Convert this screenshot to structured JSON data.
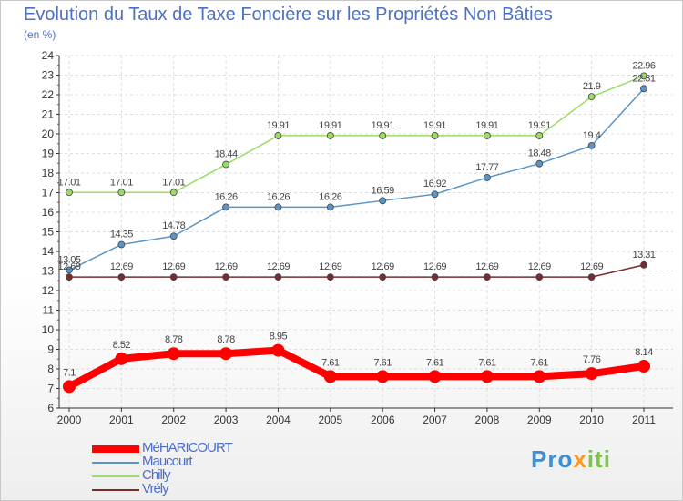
{
  "chart_data": {
    "type": "line",
    "title": "Evolution du Taux de Taxe Foncière sur les Propriétés Non Bâties",
    "unit_label": "(en %)",
    "x": [
      "2000",
      "2001",
      "2002",
      "2003",
      "2004",
      "2005",
      "2006",
      "2007",
      "2008",
      "2009",
      "2010",
      "2011"
    ],
    "ylim": [
      6,
      24
    ],
    "yticks": [
      "6",
      "7",
      "8",
      "9",
      "10",
      "11",
      "12",
      "13",
      "14",
      "15",
      "16",
      "17",
      "18",
      "19",
      "20",
      "21",
      "22",
      "23",
      "24"
    ],
    "grid": true,
    "series": [
      {
        "name": "MéHARICOURT",
        "color": "#ff0000",
        "values": [
          7.1,
          8.52,
          8.78,
          8.78,
          8.95,
          7.61,
          7.61,
          7.61,
          7.61,
          7.61,
          7.76,
          8.14
        ],
        "labels": [
          "7.1",
          "8.52",
          "8.78",
          "8.78",
          "8.95",
          "7.61",
          "7.61",
          "7.61",
          "7.61",
          "7.61",
          "7.76",
          "8.14"
        ]
      },
      {
        "name": "Maucourt",
        "color": "#5a95c8",
        "values": [
          13.05,
          14.35,
          14.78,
          16.26,
          16.26,
          16.26,
          16.59,
          16.92,
          17.77,
          18.48,
          19.4,
          22.31
        ],
        "labels": [
          "13.05",
          "14.35",
          "14.78",
          "16.26",
          "16.26",
          "16.26",
          "16.59",
          "16.92",
          "17.77",
          "18.48",
          "19.4",
          "22.31"
        ]
      },
      {
        "name": "Chilly",
        "color": "#99dd66",
        "values": [
          17.01,
          17.01,
          17.01,
          18.44,
          19.91,
          19.91,
          19.91,
          19.91,
          19.91,
          19.91,
          21.9,
          22.96
        ],
        "labels": [
          "17.01",
          "17.01",
          "17.01",
          "18.44",
          "19.91",
          "19.91",
          "19.91",
          "19.91",
          "19.91",
          "19.91",
          "21.9",
          "22.96"
        ]
      },
      {
        "name": "Vrély",
        "color": "#7a2c2c",
        "values": [
          12.69,
          12.69,
          12.69,
          12.69,
          12.69,
          12.69,
          12.69,
          12.69,
          12.69,
          12.69,
          12.69,
          13.31
        ],
        "labels": [
          "12.69",
          "12.69",
          "12.69",
          "12.69",
          "12.69",
          "12.69",
          "12.69",
          "12.69",
          "12.69",
          "12.69",
          "12.69",
          "13.31"
        ]
      }
    ],
    "legend_position": "bottom-left"
  },
  "logo": {
    "parts": [
      "Pro",
      "x",
      "iti"
    ],
    "colors": [
      "#3d8fd6",
      "#ff9a1a",
      "#7cc443"
    ]
  }
}
